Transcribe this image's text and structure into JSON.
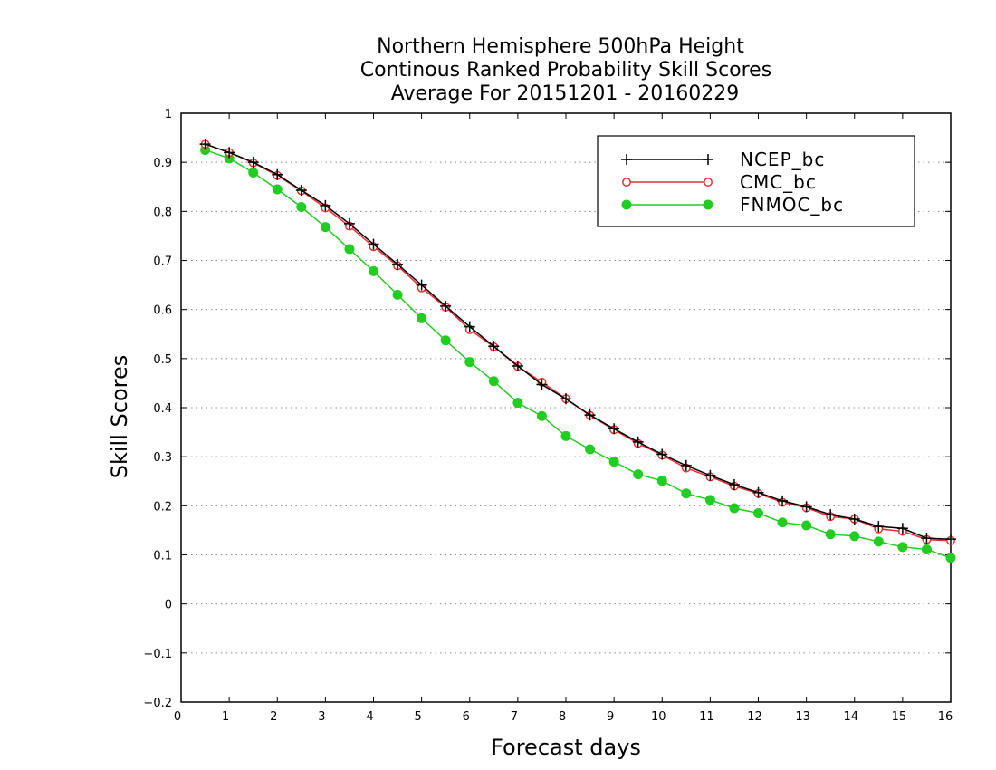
{
  "chart_data": {
    "type": "line",
    "title": [
      "Northern Hemisphere 500hPa Height",
      "Continous Ranked Probability Skill Scores",
      "Average For 20151201 - 20160229"
    ],
    "xlabel": "Forecast days",
    "ylabel": "Skill Scores",
    "xlim": [
      0,
      16
    ],
    "ylim": [
      -0.2,
      1
    ],
    "xticks": [
      0,
      1,
      2,
      3,
      4,
      5,
      6,
      7,
      8,
      9,
      10,
      11,
      12,
      13,
      14,
      15,
      16
    ],
    "yticks": [
      -0.2,
      -0.1,
      0,
      0.1,
      0.2,
      0.3,
      0.4,
      0.5,
      0.6,
      0.7,
      0.8,
      0.9,
      1
    ],
    "ytick_labels": [
      "-0.2",
      "-0.1",
      "0",
      "0.1",
      "0.2",
      "0.3",
      "0.4",
      "0.5",
      "0.6",
      "0.7",
      "0.8",
      "0.9",
      "1"
    ],
    "grid": "horizontal dotted",
    "legend_position": "top-right",
    "x": [
      0.5,
      1,
      1.5,
      2,
      2.5,
      3,
      3.5,
      4,
      4.5,
      5,
      5.5,
      6,
      6.5,
      7,
      7.5,
      8,
      8.5,
      9,
      9.5,
      10,
      10.5,
      11,
      11.5,
      12,
      12.5,
      13,
      13.5,
      14,
      14.5,
      15,
      15.5,
      16
    ],
    "series": [
      {
        "name": "NCEP_bc",
        "color": "#000000",
        "marker": "plus",
        "values": [
          0.937,
          0.92,
          0.9,
          0.875,
          0.843,
          0.812,
          0.775,
          0.733,
          0.692,
          0.65,
          0.607,
          0.565,
          0.525,
          0.485,
          0.447,
          0.418,
          0.385,
          0.357,
          0.33,
          0.305,
          0.282,
          0.262,
          0.243,
          0.227,
          0.21,
          0.198,
          0.182,
          0.173,
          0.158,
          0.154,
          0.134,
          0.132
        ]
      },
      {
        "name": "CMC_bc",
        "color": "#e83030",
        "marker": "open-circle",
        "values": [
          0.937,
          0.92,
          0.899,
          0.873,
          0.842,
          0.807,
          0.77,
          0.728,
          0.689,
          0.644,
          0.605,
          0.559,
          0.524,
          0.484,
          0.452,
          0.418,
          0.384,
          0.355,
          0.327,
          0.303,
          0.277,
          0.259,
          0.24,
          0.225,
          0.207,
          0.196,
          0.178,
          0.173,
          0.153,
          0.148,
          0.131,
          0.129
        ]
      },
      {
        "name": "FNMOC_bc",
        "color": "#22cc22",
        "marker": "filled-circle",
        "values": [
          0.925,
          0.908,
          0.879,
          0.845,
          0.809,
          0.768,
          0.723,
          0.678,
          0.63,
          0.582,
          0.537,
          0.493,
          0.454,
          0.41,
          0.383,
          0.342,
          0.315,
          0.29,
          0.264,
          0.251,
          0.225,
          0.212,
          0.195,
          0.185,
          0.166,
          0.16,
          0.142,
          0.138,
          0.127,
          0.116,
          0.111,
          0.094
        ]
      }
    ]
  }
}
